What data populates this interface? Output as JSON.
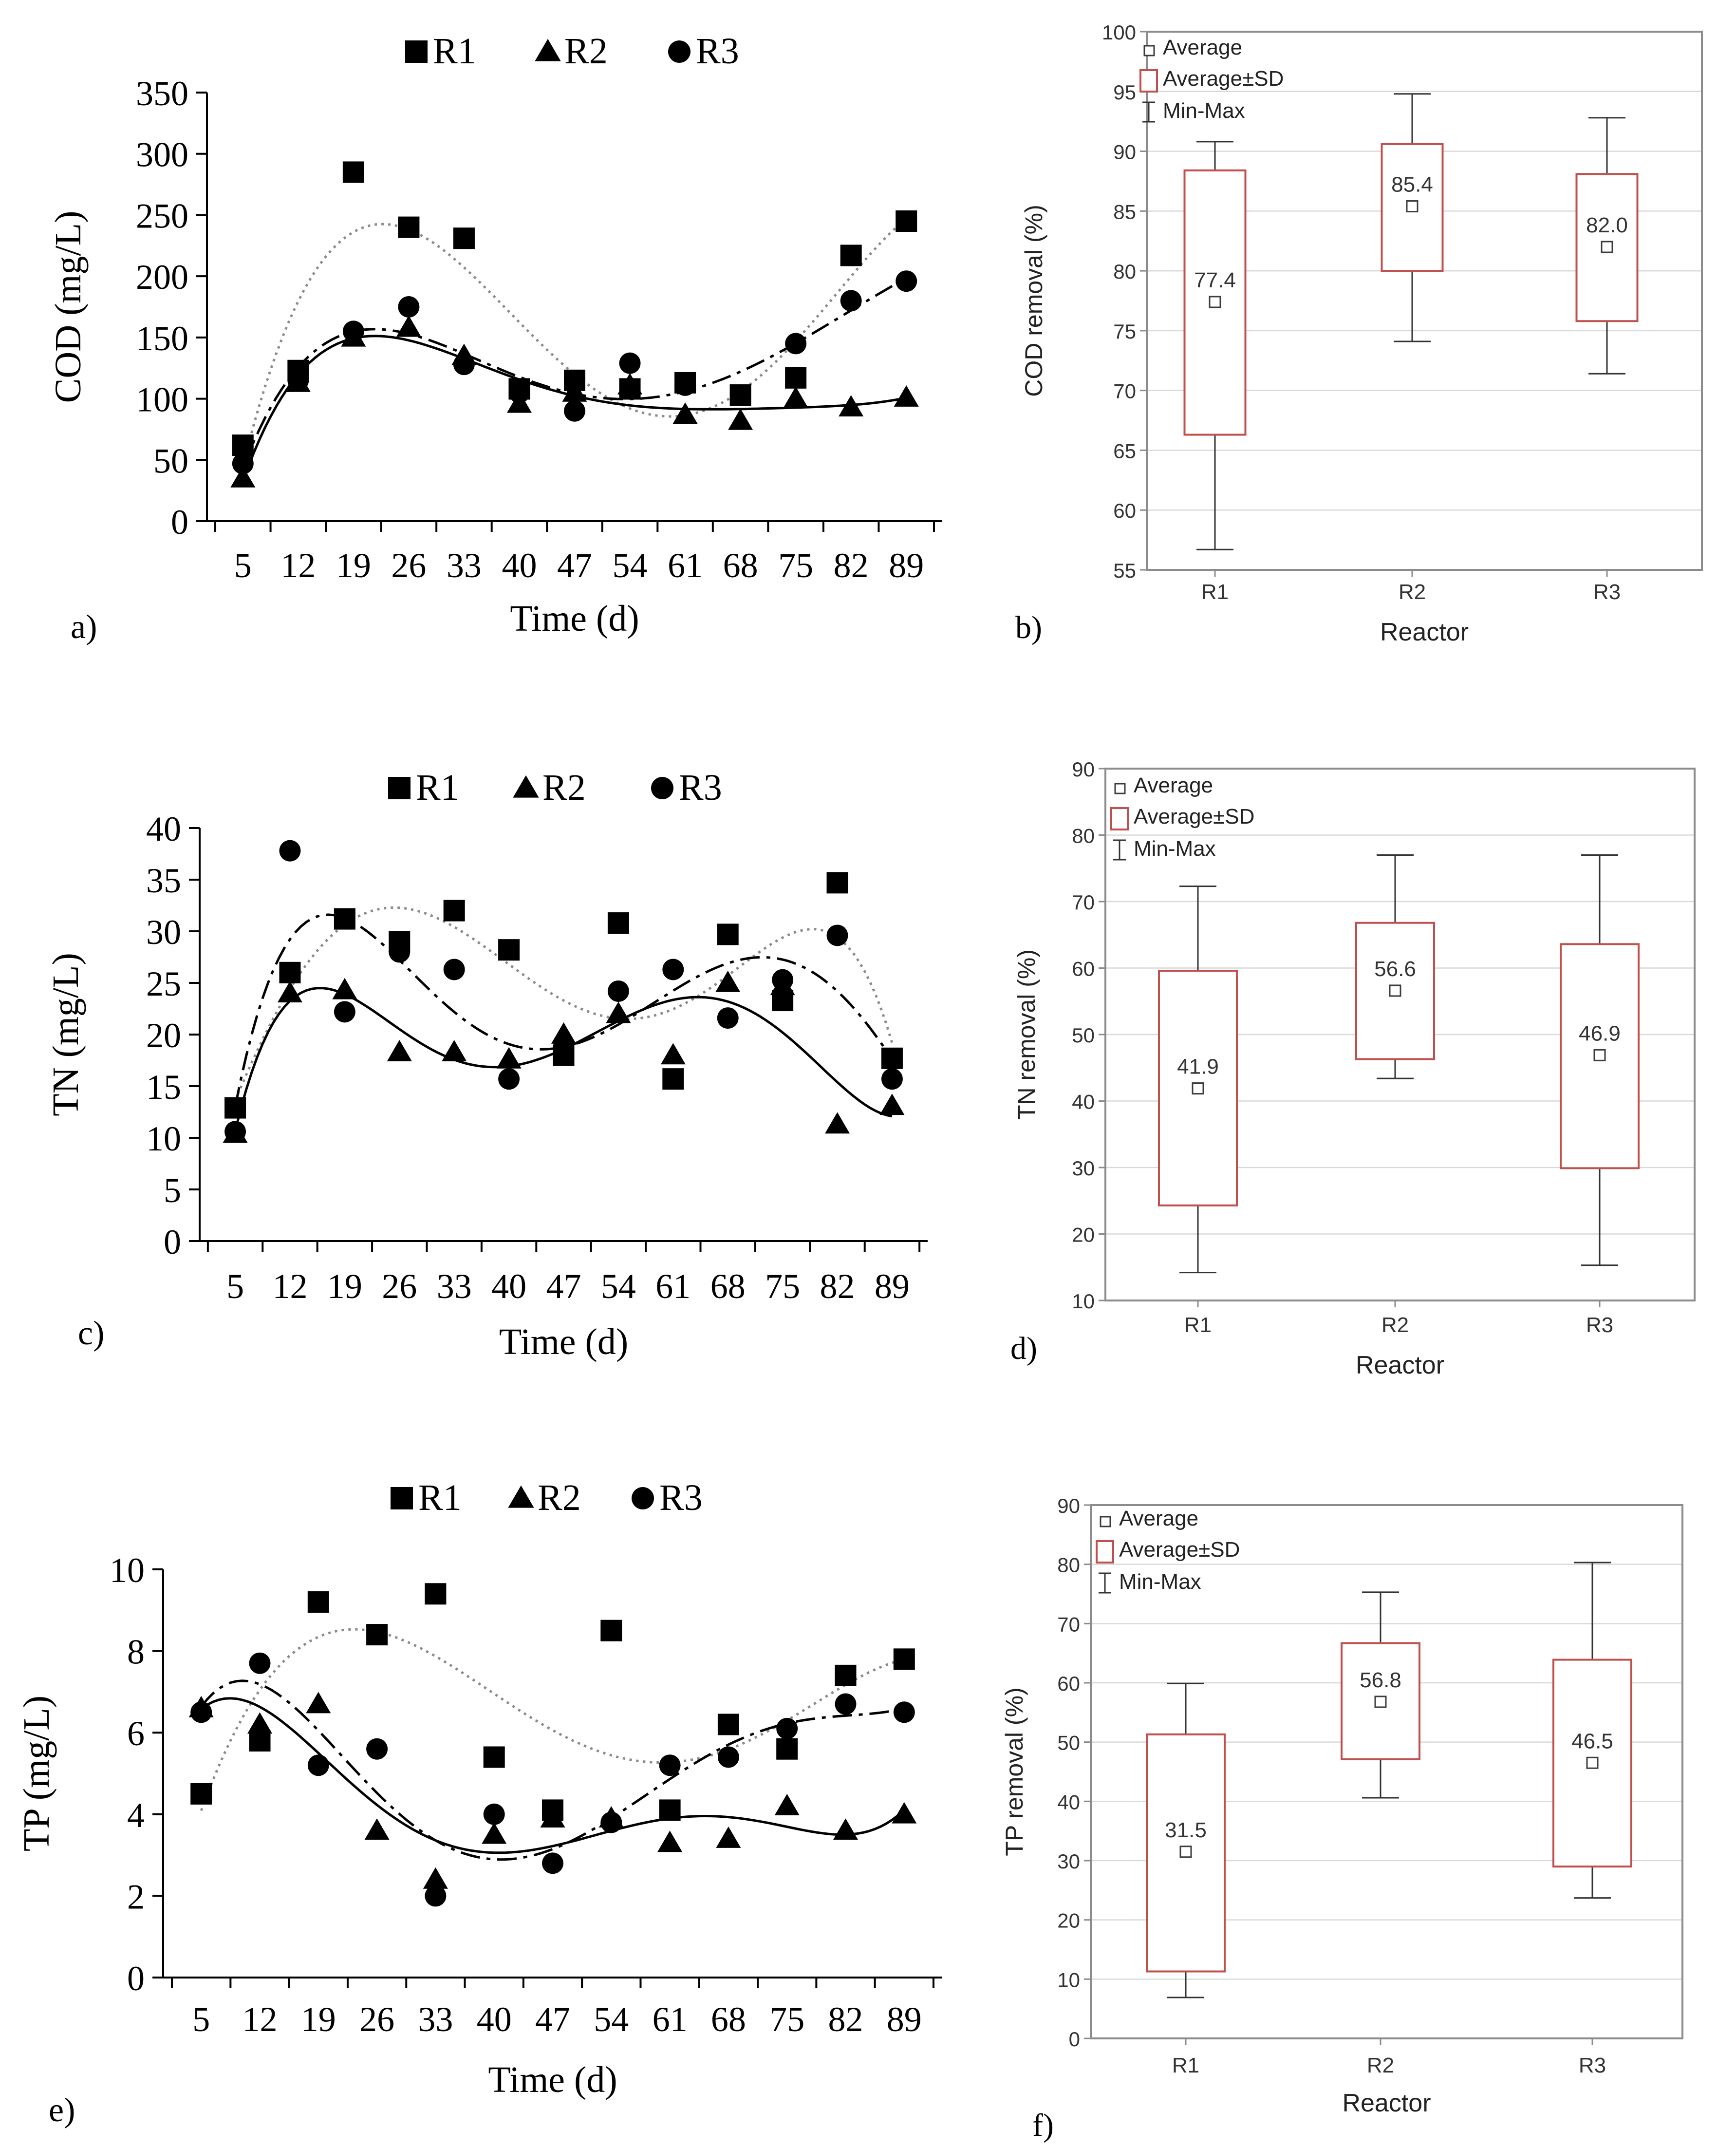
{
  "colors": {
    "ink": "#000000",
    "box_edge": "#c0504d",
    "grid": "#d9d9d9",
    "frame": "#8c8c8c",
    "avg_marker": "#3c3c3c"
  },
  "chart_data": [
    {
      "panel": "a)",
      "type": "scatter",
      "title": "",
      "xlabel": "Time (d)",
      "ylabel": "COD (mg/L)",
      "x": [
        5,
        12,
        19,
        26,
        33,
        40,
        47,
        54,
        61,
        68,
        75,
        82,
        89
      ],
      "x_tick_labels": [
        "5",
        "12",
        "19",
        "26",
        "33",
        "40",
        "47",
        "54",
        "61",
        "68",
        "75",
        "82",
        "89"
      ],
      "ylim": [
        0,
        350
      ],
      "y_ticks": [
        0,
        50,
        100,
        150,
        200,
        250,
        300,
        350
      ],
      "legend": [
        "R1",
        "R2",
        "R3"
      ],
      "legend_position": "top",
      "trend_lines": "polynomial fits per series",
      "series": [
        {
          "name": "R1",
          "marker": "square",
          "line": "dotted",
          "values": [
            62,
            123,
            285,
            240,
            231,
            108,
            115,
            108,
            113,
            103,
            117,
            217,
            245
          ]
        },
        {
          "name": "R2",
          "marker": "triangle",
          "line": "solid",
          "values": [
            35,
            113,
            150,
            158,
            135,
            96,
            105,
            111,
            87,
            82,
            100,
            93,
            101
          ]
        },
        {
          "name": "R3",
          "marker": "circle",
          "line": "dash-dot",
          "values": [
            47,
            115,
            155,
            175,
            128,
            105,
            90,
            129,
            111,
            103,
            145,
            180,
            196
          ]
        }
      ]
    },
    {
      "panel": "b)",
      "type": "box",
      "xlabel": "Reactor",
      "ylabel": "COD removal (%)",
      "categories": [
        "R1",
        "R2",
        "R3"
      ],
      "ylim": [
        55,
        100
      ],
      "y_ticks": [
        55,
        60,
        65,
        70,
        75,
        80,
        85,
        90,
        95,
        100
      ],
      "legend": [
        "Average",
        "Average±SD",
        "Min-Max"
      ],
      "average": [
        77.4,
        85.4,
        82.0
      ],
      "average_labels": [
        "77.4",
        "85.4",
        "82.0"
      ],
      "sd_low": [
        66.3,
        80.0,
        75.8
      ],
      "sd_high": [
        88.4,
        90.6,
        88.1
      ],
      "min": [
        56.7,
        74.1,
        71.4
      ],
      "max": [
        90.8,
        94.8,
        92.8
      ]
    },
    {
      "panel": "c)",
      "type": "scatter",
      "title": "",
      "xlabel": "Time (d)",
      "ylabel": "TN (mg/L)",
      "x": [
        5,
        12,
        19,
        26,
        33,
        40,
        47,
        54,
        61,
        68,
        75,
        82,
        89
      ],
      "x_tick_labels": [
        "5",
        "12",
        "19",
        "26",
        "33",
        "40",
        "47",
        "54",
        "61",
        "68",
        "75",
        "82",
        "89"
      ],
      "ylim": [
        0,
        40
      ],
      "y_ticks": [
        0,
        5,
        10,
        15,
        20,
        25,
        30,
        35,
        40
      ],
      "legend": [
        "R1",
        "R2",
        "R3"
      ],
      "legend_position": "top",
      "trend_lines": "polynomial fits per series",
      "series": [
        {
          "name": "R1",
          "marker": "square",
          "line": "dotted",
          "values": [
            12.9,
            26.0,
            31.2,
            29.0,
            32.0,
            28.2,
            18.0,
            30.8,
            15.7,
            29.7,
            23.3,
            34.7,
            17.7
          ]
        },
        {
          "name": "R2",
          "marker": "triangle",
          "line": "solid",
          "values": [
            10.4,
            24.0,
            24.3,
            18.3,
            18.3,
            17.6,
            20.0,
            22.0,
            18.0,
            25.0,
            24.7,
            11.3,
            13.1
          ]
        },
        {
          "name": "R3",
          "marker": "circle",
          "line": "dash-dot",
          "values": [
            10.6,
            37.8,
            22.2,
            28.0,
            26.3,
            15.7,
            18.7,
            24.2,
            26.3,
            21.6,
            25.3,
            29.6,
            15.7
          ]
        }
      ]
    },
    {
      "panel": "d)",
      "type": "box",
      "xlabel": "Reactor",
      "ylabel": "TN removal (%)",
      "categories": [
        "R1",
        "R2",
        "R3"
      ],
      "ylim": [
        10,
        90
      ],
      "y_ticks": [
        10,
        20,
        30,
        40,
        50,
        60,
        70,
        80,
        90
      ],
      "legend": [
        "Average",
        "Average±SD",
        "Min-Max"
      ],
      "average": [
        41.9,
        56.6,
        46.9
      ],
      "average_labels": [
        "41.9",
        "56.6",
        "46.9"
      ],
      "sd_low": [
        24.3,
        46.3,
        29.9
      ],
      "sd_high": [
        59.6,
        66.8,
        63.6
      ],
      "min": [
        14.2,
        43.4,
        15.3
      ],
      "max": [
        72.3,
        77.0,
        77.0
      ]
    },
    {
      "panel": "e)",
      "type": "scatter",
      "title": "",
      "xlabel": "Time (d)",
      "ylabel": "TP (mg/L)",
      "x": [
        5,
        12,
        19,
        26,
        33,
        40,
        47,
        54,
        61,
        68,
        75,
        82,
        89
      ],
      "x_tick_labels": [
        "5",
        "12",
        "19",
        "26",
        "33",
        "40",
        "47",
        "54",
        "61",
        "68",
        "75",
        "82",
        "89"
      ],
      "ylim": [
        0,
        10
      ],
      "y_ticks": [
        0,
        2,
        4,
        6,
        8,
        10
      ],
      "legend": [
        "R1",
        "R2",
        "R3"
      ],
      "legend_position": "top",
      "trend_lines": "polynomial fits per series",
      "series": [
        {
          "name": "R1",
          "marker": "square",
          "line": "dotted",
          "values": [
            4.5,
            5.8,
            9.2,
            8.4,
            9.4,
            5.4,
            4.1,
            8.5,
            4.1,
            6.2,
            5.6,
            7.4,
            7.8
          ]
        },
        {
          "name": "R2",
          "marker": "triangle",
          "line": "solid",
          "values": [
            6.6,
            6.2,
            6.7,
            3.6,
            2.4,
            3.5,
            3.9,
            3.9,
            3.3,
            3.4,
            4.2,
            3.6,
            4.0
          ]
        },
        {
          "name": "R3",
          "marker": "circle",
          "line": "dash-dot",
          "values": [
            6.5,
            7.7,
            5.2,
            5.6,
            2.0,
            4.0,
            2.8,
            3.8,
            5.2,
            5.4,
            6.1,
            6.7,
            6.5
          ]
        }
      ]
    },
    {
      "panel": "f)",
      "type": "box",
      "xlabel": "Reactor",
      "ylabel": "TP removal (%)",
      "categories": [
        "R1",
        "R2",
        "R3"
      ],
      "ylim": [
        0,
        90
      ],
      "y_ticks": [
        0,
        10,
        20,
        30,
        40,
        50,
        60,
        70,
        80,
        90
      ],
      "legend": [
        "Average",
        "Average±SD",
        "Min-Max"
      ],
      "average": [
        31.5,
        56.8,
        46.5
      ],
      "average_labels": [
        "31.5",
        "56.8",
        "46.5"
      ],
      "sd_low": [
        11.3,
        47.1,
        29.0
      ],
      "sd_high": [
        51.3,
        66.7,
        63.9
      ],
      "min": [
        6.9,
        40.6,
        23.7
      ],
      "max": [
        59.9,
        75.3,
        80.3
      ]
    }
  ]
}
